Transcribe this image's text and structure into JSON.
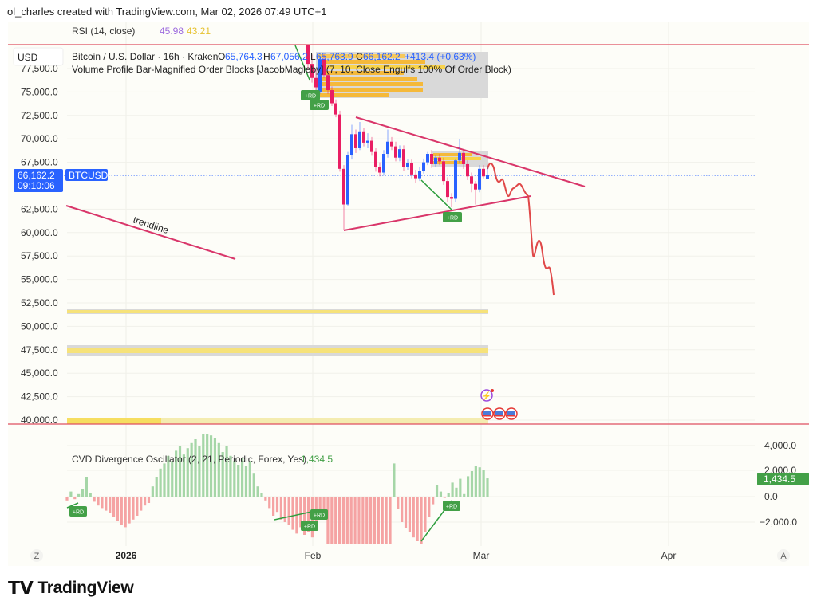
{
  "credit": "ol_charles created with TradingView.com, Mar 02, 2026 07:49 UTC+1",
  "brand": "TradingView",
  "colors": {
    "up": "#2962ff",
    "down": "#e91e63",
    "accent_blue": "#2962ff",
    "cvd_pos": "#a5d6a7",
    "cvd_neg": "#f5a3a3",
    "rd_green": "#43a047",
    "background": "#fdfdf8",
    "line_red": "#e04060"
  },
  "rsi": {
    "label": "RSI (14, close)",
    "value1": "45.98",
    "value2": "43.21"
  },
  "symbol": {
    "currency_button": "USD",
    "title": "Bitcoin / U.S. Dollar · 16h · Kraken",
    "o_label": "O",
    "o": "65,764.3",
    "h_label": "H",
    "h": "67,056.2",
    "l_label": "L",
    "l": "65,763.9",
    "c_label": "C",
    "c": "66,162.2",
    "change": "+413.4 (+0.63%)",
    "indicator": "Volume Profile Bar-Magnified Order Blocks [JacobMagleby] (7, 10, Close Engulfs 100% Of Order Block)"
  },
  "price_axis": {
    "ticks": [
      "77,500.0",
      "75,000.0",
      "72,500.0",
      "70,000.0",
      "67,500.0",
      "62,500.0",
      "60,000.0",
      "57,500.0",
      "55,000.0",
      "52,500.0",
      "50,000.0",
      "47,500.0",
      "45,000.0",
      "42,500.0",
      "40,000.0"
    ]
  },
  "current_price": {
    "price": "66,162.2",
    "countdown": "09:10:06",
    "ticker": "BTCUSD"
  },
  "drawings": {
    "trendline_label": "trendline",
    "rd_label": "+RD"
  },
  "candles": [
    [
      80500,
      81000,
      77500,
      78000
    ],
    [
      78000,
      79000,
      76000,
      76500
    ],
    [
      76500,
      77500,
      75000,
      75500
    ],
    [
      75000,
      78800,
      74800,
      78500
    ],
    [
      78500,
      79000,
      76500,
      76800
    ],
    [
      76800,
      77200,
      74800,
      75200
    ],
    [
      75200,
      75600,
      73500,
      73800
    ],
    [
      73800,
      74200,
      72300,
      72600
    ],
    [
      72600,
      73000,
      66500,
      66800
    ],
    [
      66800,
      67200,
      60300,
      63000
    ],
    [
      63000,
      68600,
      62800,
      68300
    ],
    [
      68300,
      71500,
      67800,
      70500
    ],
    [
      70500,
      71000,
      68500,
      69000
    ],
    [
      69000,
      71800,
      68800,
      70800
    ],
    [
      70800,
      71200,
      69200,
      69600
    ],
    [
      69600,
      70600,
      69000,
      69800
    ],
    [
      69800,
      70200,
      68200,
      68600
    ],
    [
      68600,
      69000,
      66500,
      67000
    ],
    [
      67000,
      67500,
      66000,
      66400
    ],
    [
      66400,
      68800,
      66100,
      68400
    ],
    [
      68400,
      71000,
      68000,
      69700
    ],
    [
      69700,
      70200,
      68800,
      69200
    ],
    [
      69200,
      69700,
      67600,
      68000
    ],
    [
      68000,
      69300,
      67600,
      68900
    ],
    [
      68900,
      69300,
      66600,
      67000
    ],
    [
      67000,
      67800,
      66700,
      67400
    ],
    [
      67400,
      67800,
      65800,
      66200
    ],
    [
      66200,
      66700,
      65300,
      65800
    ],
    [
      65800,
      67000,
      65500,
      66600
    ],
    [
      66600,
      67900,
      66300,
      67500
    ],
    [
      67500,
      68600,
      67200,
      68400
    ],
    [
      68400,
      68800,
      66900,
      67300
    ],
    [
      67300,
      68300,
      67000,
      68000
    ],
    [
      68000,
      68400,
      67200,
      67600
    ],
    [
      67600,
      68000,
      65100,
      65500
    ],
    [
      65500,
      65900,
      63300,
      63800
    ],
    [
      63800,
      64200,
      62700,
      63600
    ],
    [
      63600,
      67900,
      63300,
      67700
    ],
    [
      67700,
      70000,
      67400,
      68500
    ],
    [
      68500,
      68900,
      66800,
      67300
    ],
    [
      67300,
      67700,
      65600,
      66000
    ],
    [
      66000,
      66400,
      64300,
      65200
    ],
    [
      65200,
      65500,
      63000,
      64600
    ],
    [
      64600,
      67200,
      64300,
      66800
    ],
    [
      66800,
      67200,
      65800,
      66000
    ],
    [
      65764.3,
      67056.2,
      65763.9,
      66162.2
    ]
  ],
  "cvd": {
    "label": "CVD Divergence Oscillator (2, 21, Periodic, Forex, Yes)",
    "value": "1,434.5",
    "axis_ticks": [
      "4,000.0",
      "2,000.0",
      "0.0",
      "−2,000.0"
    ],
    "values": [
      -300,
      400,
      -200,
      200,
      600,
      1500,
      300,
      -400,
      -700,
      -900,
      -1100,
      -1300,
      -1600,
      -1900,
      -2200,
      -2400,
      -2100,
      -1800,
      -1500,
      -1100,
      -700,
      -500,
      800,
      1500,
      2200,
      2600,
      3200,
      2800,
      3600,
      4000,
      3300,
      3800,
      4200,
      4500,
      4000,
      5500,
      5300,
      4800,
      4600,
      4200,
      3500,
      4000,
      3200,
      2800,
      2500,
      3000,
      2400,
      2800,
      1800,
      800,
      300,
      -300,
      -900,
      -1500,
      -1200,
      -1800,
      -2000,
      -2200,
      -2600,
      -2900,
      -2400,
      -3000,
      -2800,
      -3200,
      -2500,
      -1800,
      -1200,
      -3700,
      -3700,
      -3700,
      -3700,
      -3700,
      -3700,
      -3700,
      -3700,
      -3700,
      -3700,
      -3700,
      -3700,
      -3700,
      -3700,
      -3700,
      -3700,
      -3700,
      2600,
      -1000,
      -2000,
      -2500,
      -2800,
      -3200,
      -3500,
      -3700,
      -2800,
      -1600,
      -600,
      900,
      400,
      -100,
      300,
      1100,
      700,
      1400,
      200,
      1600,
      2000,
      2400,
      2300,
      2100,
      1434.5
    ]
  },
  "time_axis": {
    "labels": [
      "2026",
      "Feb",
      "Mar",
      "Apr"
    ],
    "left_button": "Z",
    "right_button": "A"
  }
}
